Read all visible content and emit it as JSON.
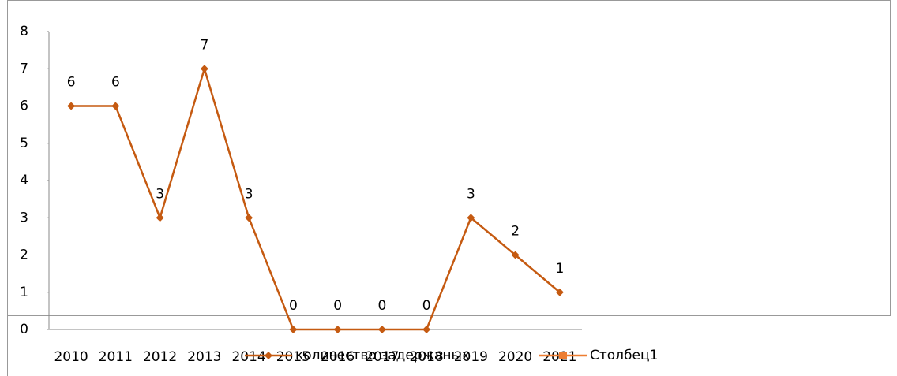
{
  "chart_data": {
    "type": "line",
    "categories": [
      "2010",
      "2011",
      "2012",
      "2013",
      "2014",
      "2015",
      "2016",
      "2017",
      "2018",
      "2019",
      "2020",
      "2021"
    ],
    "series": [
      {
        "name": "количество задержаных",
        "color": "#c55a11",
        "marker": "diamond",
        "values": [
          6,
          6,
          3,
          7,
          3,
          0,
          0,
          0,
          0,
          3,
          2,
          1
        ]
      },
      {
        "name": "Столбец1",
        "color": "#ed7d31",
        "marker": "square",
        "values": [
          null,
          null,
          null,
          null,
          null,
          null,
          null,
          null,
          null,
          null,
          null,
          null
        ]
      }
    ],
    "ylim": [
      0,
      8
    ],
    "yticks": [
      0,
      1,
      2,
      3,
      4,
      5,
      6,
      7,
      8
    ],
    "grid": false,
    "data_labels": true
  }
}
